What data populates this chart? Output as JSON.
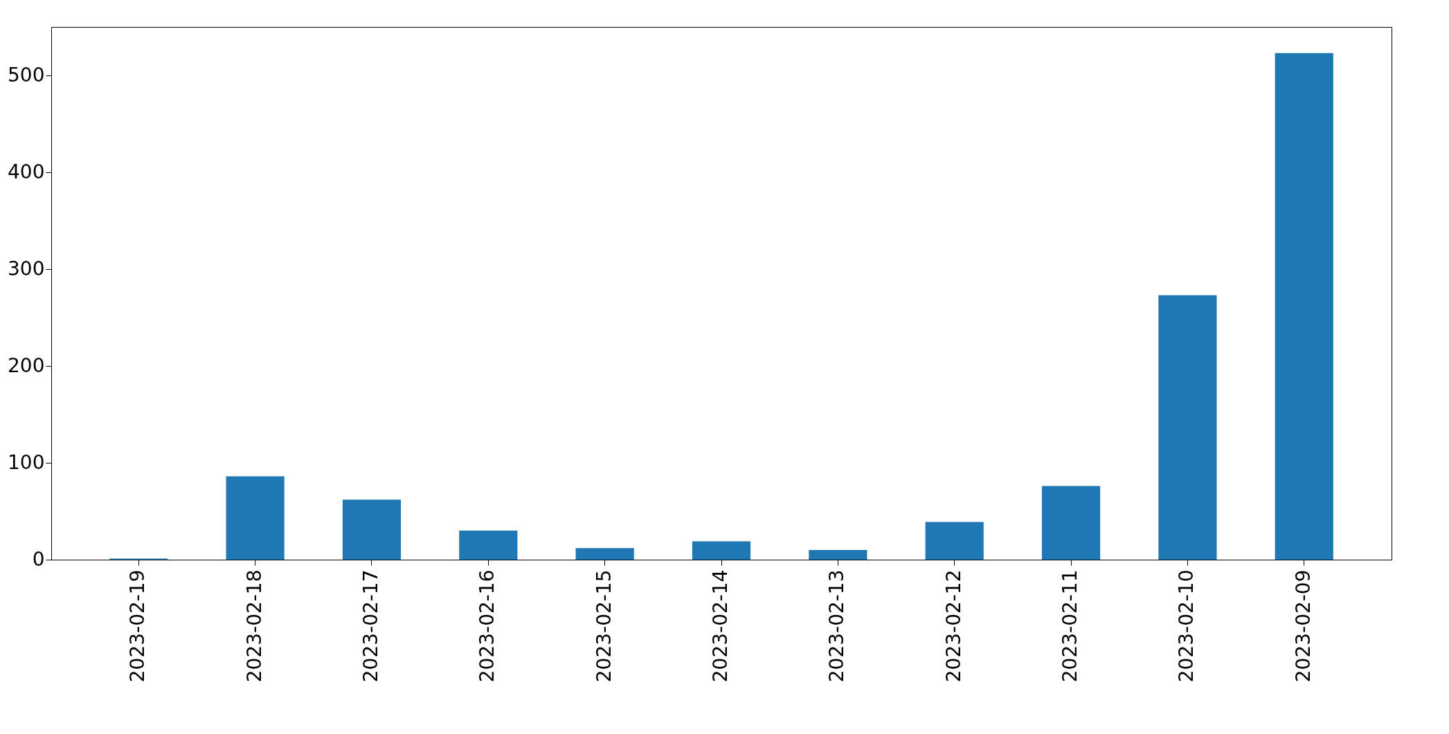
{
  "chart_data": {
    "type": "bar",
    "categories": [
      "2023-02-19",
      "2023-02-18",
      "2023-02-17",
      "2023-02-16",
      "2023-02-15",
      "2023-02-14",
      "2023-02-13",
      "2023-02-12",
      "2023-02-11",
      "2023-02-10",
      "2023-02-09"
    ],
    "values": [
      1,
      86,
      62,
      30,
      12,
      19,
      10,
      39,
      76,
      273,
      523
    ],
    "color": "#1f77b4",
    "ylim": [
      0,
      550
    ],
    "yticks": [
      0,
      100,
      200,
      300,
      400,
      500
    ],
    "grid": false
  }
}
